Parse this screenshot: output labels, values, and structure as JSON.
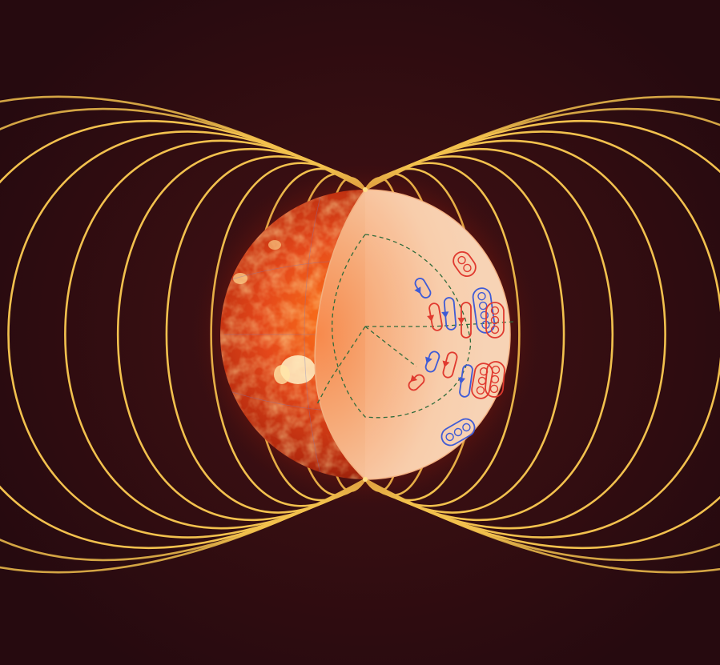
{
  "diagram": {
    "colors": {
      "background": "#2a0b10",
      "field_line": "#f2c14e",
      "sun_surface": "#c93a10",
      "interior": "#f6c9a4",
      "boundary_dashed": "#2f6b3c",
      "cell_red": "#e03a2f",
      "cell_blue": "#3f5bd6"
    },
    "elements": {
      "field_lines": "magnetic-field-lines",
      "sun": "sun-surface",
      "cutaway": "interior-cutaway",
      "core_boundary": "core-boundary",
      "convection_cells": "convection-cells"
    }
  }
}
